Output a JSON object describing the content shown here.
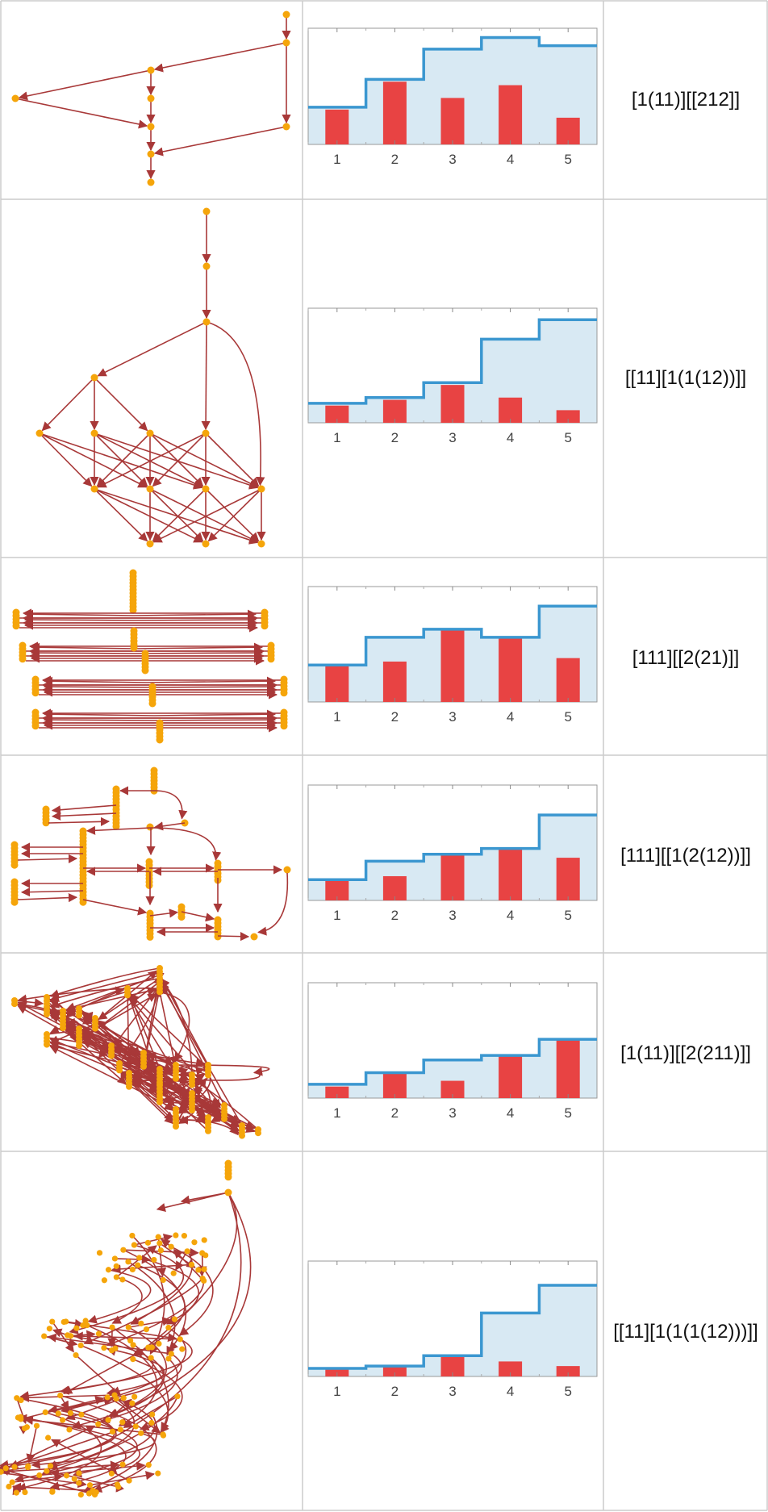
{
  "rows": [
    {
      "rule": "[1(11)][[212]]",
      "chart_data": {
        "type": "bar",
        "categories": [
          "1",
          "2",
          "3",
          "4",
          "5"
        ],
        "values": [
          0.3,
          0.54,
          0.4,
          0.51,
          0.23
        ],
        "cumulative": [
          0.32,
          0.56,
          0.82,
          0.92,
          0.85
        ],
        "ylim": [
          0,
          1
        ],
        "colors": {
          "bar": "#e84343",
          "step": "#3b97d0",
          "fill": "#d8e9f3"
        }
      }
    },
    {
      "rule": "[[11][1(1(12))]]",
      "chart_data": {
        "type": "bar",
        "categories": [
          "1",
          "2",
          "3",
          "4",
          "5"
        ],
        "values": [
          0.15,
          0.2,
          0.33,
          0.22,
          0.11
        ],
        "cumulative": [
          0.17,
          0.22,
          0.35,
          0.73,
          0.9
        ],
        "ylim": [
          0,
          1
        ],
        "colors": {
          "bar": "#e84343",
          "step": "#3b97d0",
          "fill": "#d8e9f3"
        }
      }
    },
    {
      "rule": "[111][[2(21)]]",
      "chart_data": {
        "type": "bar",
        "categories": [
          "1",
          "2",
          "3",
          "4",
          "5"
        ],
        "values": [
          0.31,
          0.35,
          0.63,
          0.55,
          0.38
        ],
        "cumulative": [
          0.32,
          0.56,
          0.63,
          0.56,
          0.83
        ],
        "ylim": [
          0,
          1
        ],
        "colors": {
          "bar": "#e84343",
          "step": "#3b97d0",
          "fill": "#d8e9f3"
        }
      }
    },
    {
      "rule": "[111][[1(2(12))]]",
      "chart_data": {
        "type": "bar",
        "categories": [
          "1",
          "2",
          "3",
          "4",
          "5"
        ],
        "values": [
          0.17,
          0.21,
          0.39,
          0.45,
          0.37
        ],
        "cumulative": [
          0.18,
          0.34,
          0.4,
          0.45,
          0.74
        ],
        "ylim": [
          0,
          1
        ],
        "colors": {
          "bar": "#e84343",
          "step": "#3b97d0",
          "fill": "#d8e9f3"
        }
      }
    },
    {
      "rule": "[1(11)][[2(211)]]",
      "chart_data": {
        "type": "bar",
        "categories": [
          "1",
          "2",
          "3",
          "4",
          "5"
        ],
        "values": [
          0.1,
          0.21,
          0.15,
          0.37,
          0.51
        ],
        "cumulative": [
          0.12,
          0.22,
          0.33,
          0.37,
          0.51
        ],
        "ylim": [
          0,
          1
        ],
        "colors": {
          "bar": "#e84343",
          "step": "#3b97d0",
          "fill": "#d8e9f3"
        }
      }
    },
    {
      "rule": "[[11][1(1(1(12)))]]",
      "chart_data": {
        "type": "bar",
        "categories": [
          "1",
          "2",
          "3",
          "4",
          "5"
        ],
        "values": [
          0.06,
          0.08,
          0.17,
          0.13,
          0.09
        ],
        "cumulative": [
          0.07,
          0.09,
          0.18,
          0.55,
          0.79
        ],
        "ylim": [
          0,
          1
        ],
        "colors": {
          "bar": "#e84343",
          "step": "#3b97d0",
          "fill": "#d8e9f3"
        }
      }
    }
  ],
  "graph_colors": {
    "node": "#f5a50a",
    "edge": "#a83838"
  }
}
